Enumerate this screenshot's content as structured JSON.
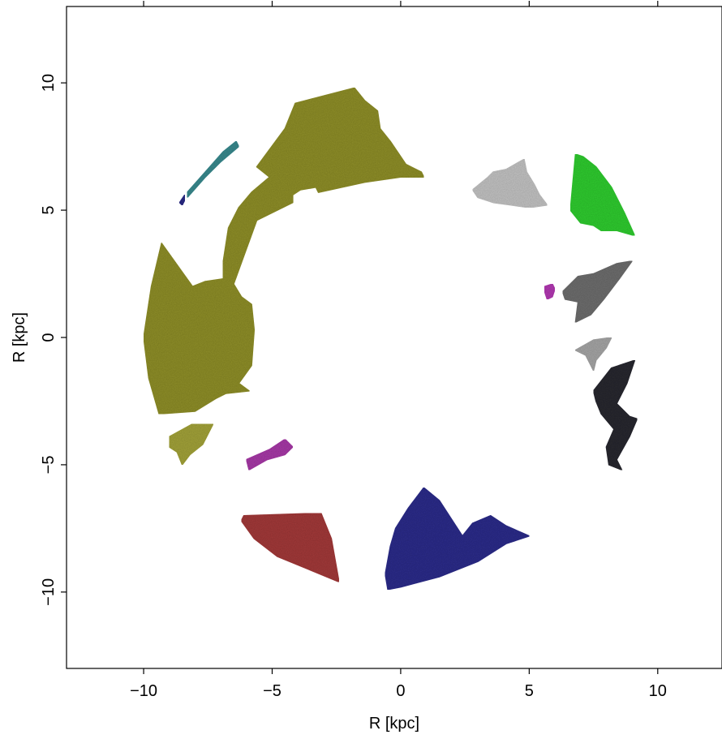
{
  "chart_data": {
    "type": "scatter",
    "title": "",
    "xlabel": "R [kpc]",
    "ylabel": "R [kpc]",
    "xlim": [
      -13,
      12.5
    ],
    "ylim": [
      -13,
      13
    ],
    "xticks": [
      -10,
      -5,
      0,
      5,
      10
    ],
    "yticks": [
      -10,
      -5,
      0,
      5,
      10
    ],
    "xtick_labels": [
      "−10",
      "−5",
      "0",
      "5",
      "10"
    ],
    "ytick_labels": [
      "−10",
      "−5",
      "0",
      "5",
      "10"
    ],
    "grid": false,
    "legend": "none",
    "regions": [
      {
        "color": "#8f8f2a",
        "points": [
          [
            -6.5,
            2.1
          ],
          [
            -5.6,
            4.6
          ],
          [
            -4.2,
            5.3
          ],
          [
            -4.2,
            5.6
          ],
          [
            -3.9,
            5.8
          ],
          [
            -3.3,
            5.9
          ],
          [
            -3.2,
            5.7
          ],
          [
            -1.4,
            6.1
          ],
          [
            0.0,
            6.3
          ],
          [
            0.9,
            6.3
          ],
          [
            0.8,
            6.5
          ],
          [
            0.2,
            6.8
          ],
          [
            -0.4,
            7.7
          ],
          [
            -0.8,
            8.2
          ],
          [
            -0.9,
            8.9
          ],
          [
            -1.4,
            9.3
          ],
          [
            -1.8,
            9.8
          ],
          [
            -4.1,
            9.2
          ],
          [
            -4.5,
            8.2
          ],
          [
            -5.6,
            6.7
          ],
          [
            -5.1,
            6.3
          ],
          [
            -5.8,
            5.7
          ],
          [
            -6.3,
            5.1
          ],
          [
            -6.7,
            4.3
          ],
          [
            -6.9,
            3.0
          ],
          [
            -6.9,
            2.3
          ],
          [
            -7.6,
            2.2
          ],
          [
            -8.1,
            2.0
          ],
          [
            -9.3,
            3.7
          ],
          [
            -9.7,
            2.0
          ],
          [
            -10.0,
            0.0
          ],
          [
            -9.8,
            -1.6
          ],
          [
            -9.4,
            -3.0
          ],
          [
            -8.0,
            -2.9
          ],
          [
            -7.2,
            -2.4
          ],
          [
            -6.8,
            -2.2
          ],
          [
            -5.9,
            -2.1
          ],
          [
            -6.3,
            -1.8
          ],
          [
            -5.8,
            -1.1
          ],
          [
            -5.7,
            0.3
          ],
          [
            -5.8,
            1.3
          ],
          [
            -6.2,
            1.6
          ]
        ]
      },
      {
        "color": "#a3a33a",
        "points": [
          [
            -9.0,
            -3.9
          ],
          [
            -8.1,
            -3.4
          ],
          [
            -7.9,
            -3.4
          ],
          [
            -7.3,
            -3.4
          ],
          [
            -7.7,
            -4.2
          ],
          [
            -8.2,
            -4.6
          ],
          [
            -8.5,
            -5.0
          ],
          [
            -8.7,
            -4.5
          ],
          [
            -9.0,
            -4.3
          ]
        ]
      },
      {
        "color": "#3a8a8f",
        "points": [
          [
            -8.3,
            5.7
          ],
          [
            -7.6,
            6.5
          ],
          [
            -6.9,
            7.3
          ],
          [
            -6.4,
            7.7
          ],
          [
            -6.3,
            7.5
          ],
          [
            -7.0,
            6.9
          ],
          [
            -7.6,
            6.3
          ],
          [
            -8.3,
            5.5
          ]
        ]
      },
      {
        "color": "#2d2d86",
        "points": [
          [
            -8.6,
            5.3
          ],
          [
            -8.4,
            5.6
          ],
          [
            -8.4,
            5.4
          ],
          [
            -8.5,
            5.2
          ]
        ]
      },
      {
        "color": "#a73aa7",
        "points": [
          [
            -6.0,
            -4.8
          ],
          [
            -5.1,
            -4.4
          ],
          [
            -4.5,
            -4.0
          ],
          [
            -4.2,
            -4.3
          ],
          [
            -4.5,
            -4.6
          ],
          [
            -5.2,
            -4.8
          ],
          [
            -5.9,
            -5.2
          ]
        ]
      },
      {
        "color": "#a33a3a",
        "points": [
          [
            -6.2,
            -7.2
          ],
          [
            -6.1,
            -7.0
          ],
          [
            -3.1,
            -6.9
          ],
          [
            -2.7,
            -7.9
          ],
          [
            -2.4,
            -9.6
          ],
          [
            -3.6,
            -9.1
          ],
          [
            -4.8,
            -8.6
          ],
          [
            -5.7,
            -7.9
          ]
        ]
      },
      {
        "color": "#2f2f8a",
        "points": [
          [
            -0.5,
            -9.9
          ],
          [
            0.0,
            -9.8
          ],
          [
            1.5,
            -9.4
          ],
          [
            3.0,
            -8.8
          ],
          [
            4.1,
            -8.1
          ],
          [
            5.0,
            -7.8
          ],
          [
            4.1,
            -7.4
          ],
          [
            3.5,
            -7.0
          ],
          [
            2.8,
            -7.3
          ],
          [
            2.4,
            -7.8
          ],
          [
            1.5,
            -6.4
          ],
          [
            0.9,
            -5.9
          ],
          [
            0.3,
            -6.7
          ],
          [
            -0.2,
            -7.5
          ],
          [
            -0.4,
            -8.2
          ],
          [
            -0.6,
            -9.3
          ]
        ]
      },
      {
        "color": "#c3c3c3",
        "points": [
          [
            2.8,
            5.8
          ],
          [
            3.4,
            6.3
          ],
          [
            3.6,
            6.5
          ],
          [
            4.1,
            6.6
          ],
          [
            4.8,
            7.0
          ],
          [
            4.9,
            6.5
          ],
          [
            5.2,
            6.0
          ],
          [
            5.4,
            5.6
          ],
          [
            5.7,
            5.2
          ],
          [
            5.0,
            5.1
          ],
          [
            4.3,
            5.2
          ],
          [
            3.6,
            5.3
          ],
          [
            3.0,
            5.5
          ]
        ]
      },
      {
        "color": "#33cc33",
        "points": [
          [
            6.6,
            5.0
          ],
          [
            6.8,
            7.2
          ],
          [
            7.1,
            7.1
          ],
          [
            7.6,
            6.7
          ],
          [
            8.2,
            5.9
          ],
          [
            8.7,
            4.9
          ],
          [
            9.1,
            4.0
          ],
          [
            8.4,
            4.2
          ],
          [
            7.8,
            4.2
          ],
          [
            7.5,
            4.4
          ],
          [
            7.0,
            4.5
          ]
        ]
      },
      {
        "color": "#6e6e6e",
        "points": [
          [
            6.3,
            1.8
          ],
          [
            6.9,
            2.4
          ],
          [
            7.5,
            2.5
          ],
          [
            8.4,
            2.9
          ],
          [
            9.0,
            3.0
          ],
          [
            8.5,
            2.3
          ],
          [
            7.9,
            1.5
          ],
          [
            7.4,
            0.9
          ],
          [
            6.8,
            0.6
          ],
          [
            6.9,
            1.4
          ],
          [
            6.4,
            1.5
          ]
        ]
      },
      {
        "color": "#a6a6a6",
        "points": [
          [
            6.8,
            -0.5
          ],
          [
            7.5,
            -0.1
          ],
          [
            8.2,
            0.0
          ],
          [
            8.0,
            -0.4
          ],
          [
            7.6,
            -0.9
          ],
          [
            7.5,
            -1.3
          ],
          [
            7.2,
            -0.7
          ]
        ]
      },
      {
        "color": "#2a2a33",
        "points": [
          [
            7.5,
            -2.1
          ],
          [
            8.2,
            -1.2
          ],
          [
            9.1,
            -0.9
          ],
          [
            8.8,
            -1.8
          ],
          [
            8.4,
            -2.6
          ],
          [
            8.9,
            -3.1
          ],
          [
            9.2,
            -3.2
          ],
          [
            8.9,
            -3.9
          ],
          [
            8.4,
            -4.8
          ],
          [
            8.6,
            -5.2
          ],
          [
            8.1,
            -5.0
          ],
          [
            8.0,
            -4.3
          ],
          [
            8.3,
            -3.6
          ],
          [
            7.8,
            -3.0
          ],
          [
            7.6,
            -2.5
          ]
        ]
      },
      {
        "color": "#b33ab3",
        "points": [
          [
            5.6,
            2.0
          ],
          [
            5.9,
            2.1
          ],
          [
            6.0,
            1.9
          ],
          [
            5.9,
            1.6
          ],
          [
            5.7,
            1.5
          ],
          [
            5.6,
            1.8
          ]
        ]
      }
    ]
  }
}
